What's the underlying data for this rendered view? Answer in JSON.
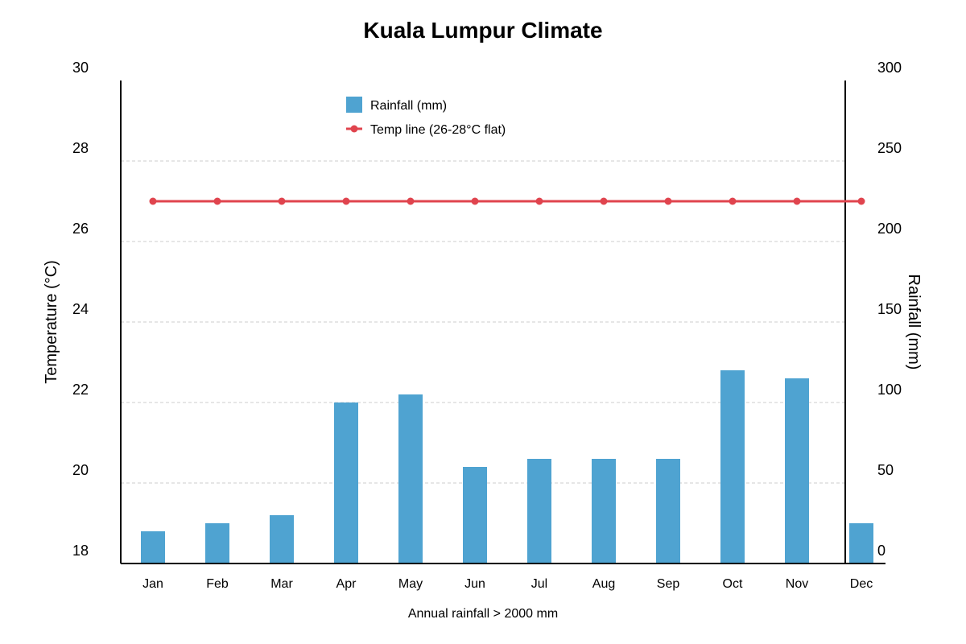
{
  "chart_data": {
    "type": "bar",
    "title": "Kuala Lumpur Climate",
    "categories": [
      "Jan",
      "Feb",
      "Mar",
      "Apr",
      "May",
      "Jun",
      "Jul",
      "Aug",
      "Sep",
      "Oct",
      "Nov",
      "Dec"
    ],
    "series": [
      {
        "name": "Rainfall (mm)",
        "type": "bar",
        "axis": "right",
        "color": "#4fa3d1",
        "values": [
          20,
          25,
          30,
          100,
          105,
          60,
          65,
          65,
          65,
          120,
          115,
          25
        ]
      },
      {
        "name": "Temp line (26-28°C flat)",
        "type": "line",
        "axis": "left",
        "color": "#e0444e",
        "values": [
          27,
          27,
          27,
          27,
          27,
          27,
          27,
          27,
          27,
          27,
          27,
          27
        ]
      }
    ],
    "y_left": {
      "label": "Temperature (°C)",
      "range": [
        18,
        30
      ],
      "ticks": [
        18,
        20,
        22,
        24,
        26,
        28,
        30
      ]
    },
    "y_right": {
      "label": "Rainfall (mm)",
      "range": [
        0,
        300
      ],
      "ticks": [
        0,
        50,
        100,
        150,
        200,
        250,
        300
      ]
    },
    "xlabel": "Annual rainfall > 2000 mm",
    "grid": true,
    "legend_position": "top-center"
  }
}
